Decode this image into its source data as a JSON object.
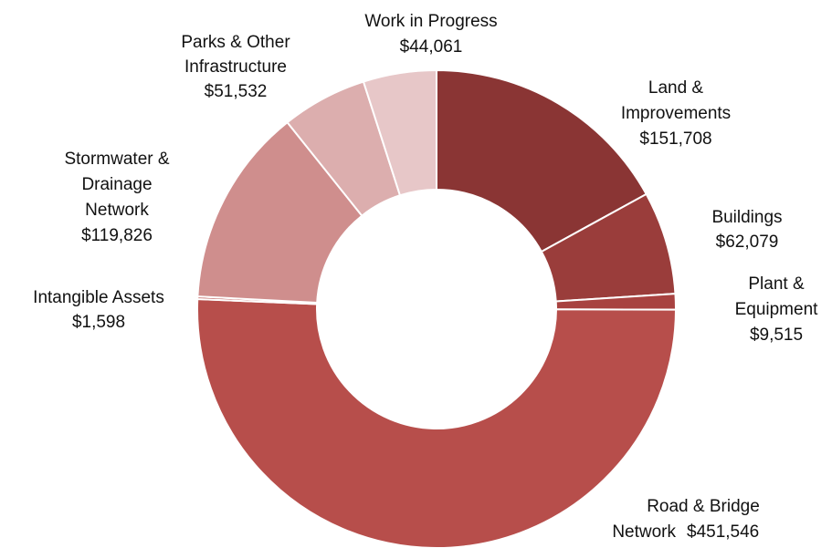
{
  "chart_data": {
    "type": "donut",
    "categories": [
      [
        "Land &",
        "Improvements"
      ],
      [
        "Buildings"
      ],
      [
        "Plant &",
        "Equipment"
      ],
      [
        "Road & Bridge",
        "Network"
      ],
      [
        "Intangible Assets"
      ],
      [
        "Stormwater &",
        "Drainage",
        "Network"
      ],
      [
        "Parks & Other",
        "Infrastructure"
      ],
      [
        "Work in Progress"
      ]
    ],
    "values": [
      151708,
      62079,
      9515,
      451546,
      1598,
      119826,
      51532,
      44061
    ],
    "value_labels": [
      "$151,708",
      "$62,079",
      "$9,515",
      "$451,546",
      "$1,598",
      "$119,826",
      "$51,532",
      "$44,061"
    ],
    "colors": [
      "#8a3534",
      "#9a3d3b",
      "#a84240",
      "#b74e4b",
      "#c26563",
      "#cf8e8d",
      "#dcaeae",
      "#e7c7c8"
    ]
  }
}
